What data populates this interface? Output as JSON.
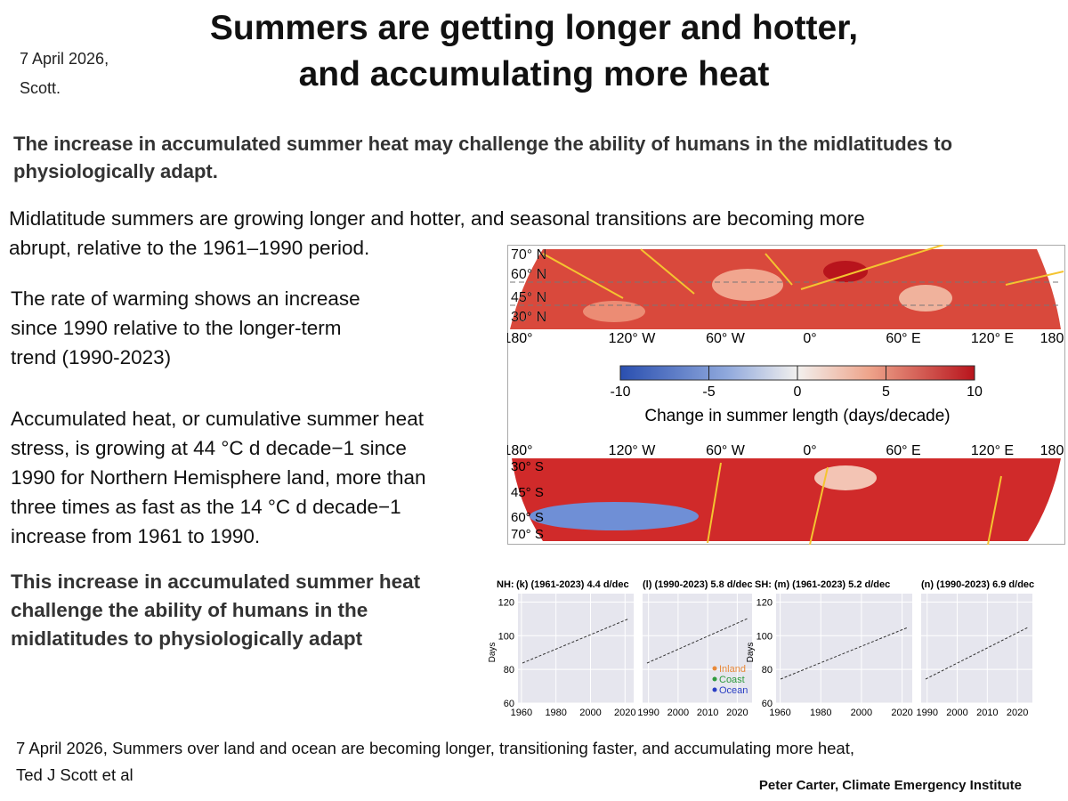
{
  "header": {
    "date": [
      "7 April 2026,",
      "Scott."
    ],
    "title": [
      "Summers are getting longer and hotter,",
      "and accumulating more heat"
    ]
  },
  "lead": [
    "The increase in accumulated summer heat may challenge the ability of humans in the midlatitudes to",
    "physiologically adapt."
  ],
  "paragraphs": [
    [
      "Midlatitude summers are growing longer and hotter, and seasonal transitions are becoming more",
      "abrupt, relative to the 1961–1990 period."
    ],
    [
      "The rate of warming shows an increase",
      "since 1990 relative to the longer-term",
      "trend (1990-2023)"
    ],
    [
      "Accumulated heat, or cumulative summer heat",
      "stress, is growing at 44 °C d decade−1 since",
      "1990 for Northern Hemisphere land, more than",
      "three times as fast as the 14 °C d decade−1",
      "increase from 1961 to 1990."
    ]
  ],
  "closing": [
    "This increase in accumulated summer heat",
    "challenge the ability of humans in the",
    "midlatitudes to physiologically adapt"
  ],
  "map_figure": {
    "north_lat_labels": [
      "70° N",
      "60° N",
      "45° N",
      "30° N"
    ],
    "north_lon_labels": [
      "180°",
      "120° W",
      "60° W",
      "0°",
      "60° E",
      "120° E",
      "180"
    ],
    "colorbar": {
      "ticks": [
        -10,
        -5,
        0,
        5,
        10
      ],
      "label": "Change in summer length (days/decade)"
    },
    "south_lon_labels": [
      "180°",
      "120° W",
      "60° W",
      "0°",
      "60° E",
      "120° E",
      "180"
    ],
    "south_lat_labels": [
      "30° S",
      "45° S",
      "60° S",
      "70° S"
    ]
  },
  "trend_figure": {
    "y_label": "Days",
    "ylim": [
      60,
      125
    ],
    "yticks": [
      60,
      80,
      100,
      120
    ],
    "hemispheres": [
      "NH:",
      "SH:"
    ],
    "panels": [
      {
        "title": "(k) (1961-2023) 4.4 d/dec",
        "xlim": [
          1958,
          2025
        ],
        "xticks": [
          1960,
          1980,
          2000,
          2020
        ]
      },
      {
        "title": "(l) (1990-2023) 5.8 d/dec",
        "xlim": [
          1988,
          2025
        ],
        "xticks": [
          1990,
          2000,
          2010,
          2020
        ]
      },
      {
        "title": "(m) (1961-2023) 5.2 d/dec",
        "xlim": [
          1958,
          2025
        ],
        "xticks": [
          1960,
          1980,
          2000,
          2020
        ]
      },
      {
        "title": "(n) (1990-2023) 6.9 d/dec",
        "xlim": [
          1988,
          2025
        ],
        "xticks": [
          1990,
          2000,
          2010,
          2020
        ]
      }
    ],
    "legend": [
      {
        "name": "Inland",
        "color": "#e8893a"
      },
      {
        "name": "Coast",
        "color": "#2e9a3e"
      },
      {
        "name": "Ocean",
        "color": "#2b3fc4"
      }
    ]
  },
  "citation": [
    "7 April 2026, Summers over land and ocean are becoming longer, transitioning faster, and accumulating more heat,",
    "Ted J Scott et al"
  ],
  "credit": "Peter Carter, Climate Emergency Institute"
}
